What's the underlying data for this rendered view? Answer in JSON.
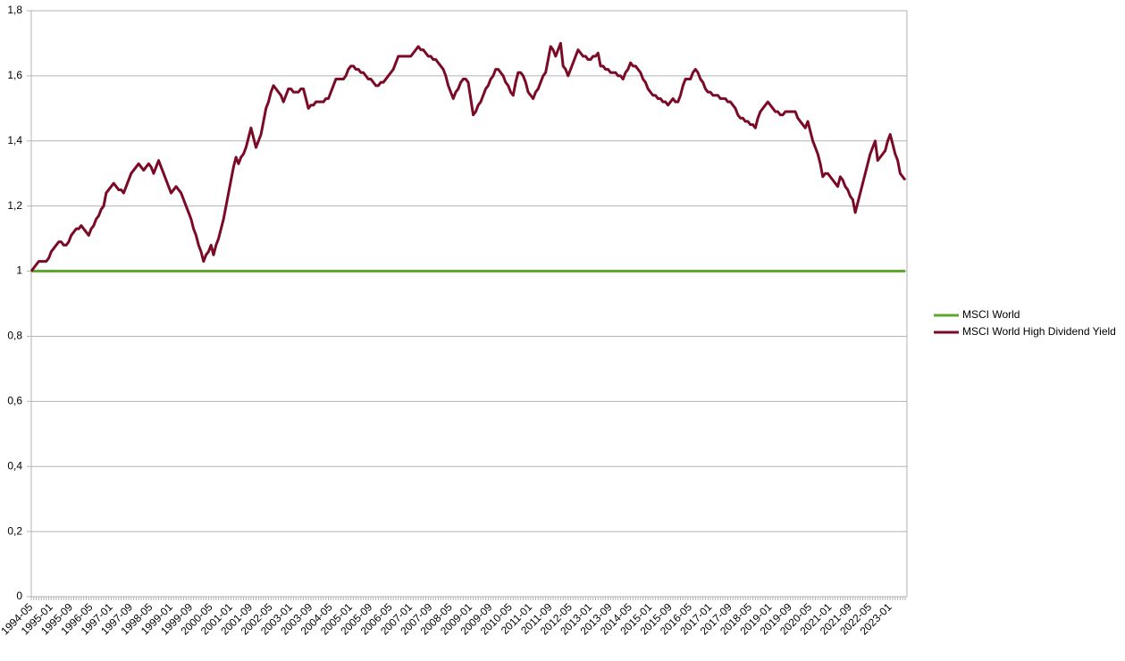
{
  "chart_data": {
    "type": "line",
    "categories": [
      "1994-05",
      null,
      null,
      null,
      null,
      null,
      null,
      null,
      "1995-01",
      null,
      null,
      null,
      null,
      null,
      null,
      null,
      "1995-09",
      null,
      null,
      null,
      null,
      null,
      null,
      null,
      "1996-05",
      null,
      null,
      null,
      null,
      null,
      null,
      null,
      "1997-01",
      null,
      null,
      null,
      null,
      null,
      null,
      null,
      "1997-09",
      null,
      null,
      null,
      null,
      null,
      null,
      null,
      "1998-05",
      null,
      null,
      null,
      null,
      null,
      null,
      null,
      "1999-01",
      null,
      null,
      null,
      null,
      null,
      null,
      null,
      "1999-09",
      null,
      null,
      null,
      null,
      null,
      null,
      null,
      "2000-05",
      null,
      null,
      null,
      null,
      null,
      null,
      null,
      "2001-01",
      null,
      null,
      null,
      null,
      null,
      null,
      null,
      "2001-09",
      null,
      null,
      null,
      null,
      null,
      null,
      null,
      "2002-05",
      null,
      null,
      null,
      null,
      null,
      null,
      null,
      "2003-01",
      null,
      null,
      null,
      null,
      null,
      null,
      null,
      "2003-09",
      null,
      null,
      null,
      null,
      null,
      null,
      null,
      "2004-05",
      null,
      null,
      null,
      null,
      null,
      null,
      null,
      "2005-01",
      null,
      null,
      null,
      null,
      null,
      null,
      null,
      "2005-09",
      null,
      null,
      null,
      null,
      null,
      null,
      null,
      "2006-05",
      null,
      null,
      null,
      null,
      null,
      null,
      null,
      "2007-01",
      null,
      null,
      null,
      null,
      null,
      null,
      null,
      "2007-09",
      null,
      null,
      null,
      null,
      null,
      null,
      null,
      "2008-05",
      null,
      null,
      null,
      null,
      null,
      null,
      null,
      "2009-01",
      null,
      null,
      null,
      null,
      null,
      null,
      null,
      "2009-09",
      null,
      null,
      null,
      null,
      null,
      null,
      null,
      "2010-05",
      null,
      null,
      null,
      null,
      null,
      null,
      null,
      "2011-01",
      null,
      null,
      null,
      null,
      null,
      null,
      null,
      "2011-09",
      null,
      null,
      null,
      null,
      null,
      null,
      null,
      "2012-05",
      null,
      null,
      null,
      null,
      null,
      null,
      null,
      "2013-01",
      null,
      null,
      null,
      null,
      null,
      null,
      null,
      "2013-09",
      null,
      null,
      null,
      null,
      null,
      null,
      null,
      "2014-05",
      null,
      null,
      null,
      null,
      null,
      null,
      null,
      "2015-01",
      null,
      null,
      null,
      null,
      null,
      null,
      null,
      "2015-09",
      null,
      null,
      null,
      null,
      null,
      null,
      null,
      "2016-05",
      null,
      null,
      null,
      null,
      null,
      null,
      null,
      "2017-01",
      null,
      null,
      null,
      null,
      null,
      null,
      null,
      "2017-09",
      null,
      null,
      null,
      null,
      null,
      null,
      null,
      "2018-05",
      null,
      null,
      null,
      null,
      null,
      null,
      null,
      "2019-01",
      null,
      null,
      null,
      null,
      null,
      null,
      null,
      "2019-09",
      null,
      null,
      null,
      null,
      null,
      null,
      null,
      "2020-05",
      null,
      null,
      null,
      null,
      null,
      null,
      null,
      "2021-01",
      null,
      null,
      null,
      null,
      null,
      null,
      null,
      "2021-09",
      null,
      null,
      null,
      null,
      null,
      null,
      null,
      "2022-05",
      null,
      null,
      null,
      null,
      null,
      null,
      null,
      "2023-01",
      null,
      null,
      null,
      null,
      null,
      null
    ],
    "series": [
      {
        "name": "MSCI World",
        "color": "#5ea82e",
        "values": [
          1,
          1,
          1,
          1,
          1,
          1,
          1,
          1,
          1,
          1,
          1,
          1,
          1,
          1,
          1,
          1,
          1,
          1,
          1,
          1,
          1,
          1,
          1,
          1,
          1,
          1,
          1,
          1,
          1,
          1,
          1,
          1,
          1,
          1,
          1,
          1,
          1,
          1,
          1,
          1,
          1,
          1,
          1,
          1,
          1,
          1,
          1,
          1,
          1,
          1,
          1,
          1,
          1,
          1,
          1,
          1,
          1,
          1,
          1,
          1,
          1,
          1,
          1,
          1,
          1,
          1,
          1,
          1,
          1,
          1,
          1,
          1,
          1,
          1,
          1,
          1,
          1,
          1,
          1,
          1,
          1,
          1,
          1,
          1,
          1,
          1,
          1,
          1,
          1,
          1,
          1,
          1,
          1,
          1,
          1,
          1,
          1,
          1,
          1,
          1,
          1,
          1,
          1,
          1,
          1,
          1,
          1,
          1,
          1,
          1,
          1,
          1,
          1,
          1,
          1,
          1,
          1,
          1,
          1,
          1,
          1,
          1,
          1,
          1,
          1,
          1,
          1,
          1,
          1,
          1,
          1,
          1,
          1,
          1,
          1,
          1,
          1,
          1,
          1,
          1,
          1,
          1,
          1,
          1,
          1,
          1,
          1,
          1,
          1,
          1,
          1,
          1,
          1,
          1,
          1,
          1,
          1,
          1,
          1,
          1,
          1,
          1,
          1,
          1,
          1,
          1,
          1,
          1,
          1,
          1,
          1,
          1,
          1,
          1,
          1,
          1,
          1,
          1,
          1,
          1,
          1,
          1,
          1,
          1,
          1,
          1,
          1,
          1,
          1,
          1,
          1,
          1,
          1,
          1,
          1,
          1,
          1,
          1,
          1,
          1,
          1,
          1,
          1,
          1,
          1,
          1,
          1,
          1,
          1,
          1,
          1,
          1,
          1,
          1,
          1,
          1,
          1,
          1,
          1,
          1,
          1,
          1,
          1,
          1,
          1,
          1,
          1,
          1,
          1,
          1,
          1,
          1,
          1,
          1,
          1,
          1,
          1,
          1,
          1,
          1,
          1,
          1,
          1,
          1,
          1,
          1,
          1,
          1,
          1,
          1,
          1,
          1,
          1,
          1,
          1,
          1,
          1,
          1,
          1,
          1,
          1,
          1,
          1,
          1,
          1,
          1,
          1,
          1,
          1,
          1,
          1,
          1,
          1,
          1,
          1,
          1,
          1,
          1,
          1,
          1,
          1,
          1,
          1,
          1,
          1,
          1,
          1,
          1,
          1,
          1,
          1,
          1,
          1,
          1,
          1,
          1,
          1,
          1,
          1,
          1,
          1,
          1,
          1,
          1,
          1,
          1,
          1,
          1,
          1,
          1,
          1,
          1,
          1,
          1,
          1,
          1,
          1,
          1,
          1,
          1,
          1,
          1,
          1,
          1,
          1,
          1,
          1,
          1,
          1,
          1,
          1,
          1,
          1,
          1,
          1,
          1,
          1,
          1,
          1,
          1,
          1,
          1,
          1,
          1,
          1,
          1,
          1,
          1,
          1,
          1,
          1
        ]
      },
      {
        "name": "MSCI World High Dividend Yield",
        "color": "#7b0a26",
        "values": [
          1.0,
          1.01,
          1.02,
          1.03,
          1.03,
          1.03,
          1.03,
          1.04,
          1.06,
          1.07,
          1.08,
          1.09,
          1.09,
          1.08,
          1.08,
          1.09,
          1.11,
          1.12,
          1.13,
          1.13,
          1.14,
          1.13,
          1.12,
          1.11,
          1.13,
          1.14,
          1.16,
          1.17,
          1.19,
          1.2,
          1.24,
          1.25,
          1.26,
          1.27,
          1.26,
          1.25,
          1.25,
          1.24,
          1.26,
          1.28,
          1.3,
          1.31,
          1.32,
          1.33,
          1.32,
          1.31,
          1.32,
          1.33,
          1.32,
          1.3,
          1.32,
          1.34,
          1.32,
          1.3,
          1.28,
          1.26,
          1.24,
          1.25,
          1.26,
          1.25,
          1.24,
          1.22,
          1.2,
          1.18,
          1.16,
          1.13,
          1.11,
          1.08,
          1.06,
          1.03,
          1.05,
          1.06,
          1.08,
          1.05,
          1.08,
          1.1,
          1.13,
          1.16,
          1.2,
          1.24,
          1.28,
          1.32,
          1.35,
          1.33,
          1.35,
          1.36,
          1.38,
          1.41,
          1.44,
          1.41,
          1.38,
          1.4,
          1.42,
          1.46,
          1.5,
          1.52,
          1.55,
          1.57,
          1.56,
          1.55,
          1.54,
          1.52,
          1.54,
          1.56,
          1.56,
          1.55,
          1.55,
          1.55,
          1.56,
          1.56,
          1.53,
          1.5,
          1.51,
          1.51,
          1.52,
          1.52,
          1.52,
          1.52,
          1.53,
          1.53,
          1.55,
          1.57,
          1.59,
          1.59,
          1.59,
          1.59,
          1.6,
          1.62,
          1.63,
          1.63,
          1.62,
          1.62,
          1.61,
          1.61,
          1.6,
          1.59,
          1.59,
          1.58,
          1.57,
          1.57,
          1.58,
          1.58,
          1.59,
          1.6,
          1.61,
          1.62,
          1.64,
          1.66,
          1.66,
          1.66,
          1.66,
          1.66,
          1.66,
          1.67,
          1.68,
          1.69,
          1.68,
          1.68,
          1.67,
          1.66,
          1.66,
          1.65,
          1.65,
          1.64,
          1.63,
          1.62,
          1.6,
          1.57,
          1.55,
          1.53,
          1.55,
          1.56,
          1.58,
          1.59,
          1.59,
          1.58,
          1.53,
          1.48,
          1.49,
          1.51,
          1.52,
          1.54,
          1.56,
          1.57,
          1.59,
          1.6,
          1.62,
          1.62,
          1.61,
          1.6,
          1.58,
          1.57,
          1.55,
          1.54,
          1.58,
          1.61,
          1.61,
          1.6,
          1.58,
          1.55,
          1.54,
          1.53,
          1.55,
          1.56,
          1.58,
          1.6,
          1.61,
          1.65,
          1.69,
          1.68,
          1.66,
          1.68,
          1.7,
          1.63,
          1.62,
          1.6,
          1.62,
          1.64,
          1.66,
          1.68,
          1.67,
          1.66,
          1.66,
          1.65,
          1.65,
          1.66,
          1.66,
          1.67,
          1.63,
          1.63,
          1.62,
          1.62,
          1.61,
          1.61,
          1.61,
          1.6,
          1.6,
          1.59,
          1.61,
          1.62,
          1.64,
          1.63,
          1.63,
          1.62,
          1.61,
          1.59,
          1.58,
          1.56,
          1.55,
          1.54,
          1.54,
          1.53,
          1.53,
          1.52,
          1.52,
          1.51,
          1.52,
          1.53,
          1.52,
          1.52,
          1.54,
          1.57,
          1.59,
          1.59,
          1.59,
          1.61,
          1.62,
          1.61,
          1.59,
          1.58,
          1.56,
          1.55,
          1.55,
          1.54,
          1.54,
          1.54,
          1.53,
          1.53,
          1.53,
          1.52,
          1.52,
          1.51,
          1.5,
          1.48,
          1.47,
          1.47,
          1.46,
          1.46,
          1.45,
          1.45,
          1.44,
          1.47,
          1.49,
          1.5,
          1.51,
          1.52,
          1.51,
          1.5,
          1.49,
          1.49,
          1.48,
          1.48,
          1.49,
          1.49,
          1.49,
          1.49,
          1.49,
          1.47,
          1.46,
          1.45,
          1.44,
          1.46,
          1.43,
          1.4,
          1.38,
          1.36,
          1.33,
          1.29,
          1.3,
          1.3,
          1.29,
          1.28,
          1.27,
          1.26,
          1.29,
          1.28,
          1.26,
          1.25,
          1.23,
          1.22,
          1.18,
          1.21,
          1.24,
          1.27,
          1.3,
          1.33,
          1.36,
          1.38,
          1.4,
          1.34,
          1.35,
          1.36,
          1.37,
          1.4,
          1.42,
          1.39,
          1.36,
          1.34,
          1.3,
          1.29,
          1.28
        ]
      }
    ],
    "ylim": [
      0,
      1.8
    ],
    "yticks": [
      0,
      {
        "value": 0.2,
        "label": "0,2"
      },
      {
        "value": 0.4,
        "label": "0,4"
      },
      {
        "value": 0.6,
        "label": "0,6"
      },
      {
        "value": 0.8,
        "label": "0,8"
      },
      1,
      {
        "value": 1.2,
        "label": "1,2"
      },
      {
        "value": 1.4,
        "label": "1,4"
      },
      {
        "value": 1.6,
        "label": "1,6"
      },
      {
        "value": 1.8,
        "label": "1,8"
      }
    ],
    "grid": true,
    "legend": "right"
  }
}
